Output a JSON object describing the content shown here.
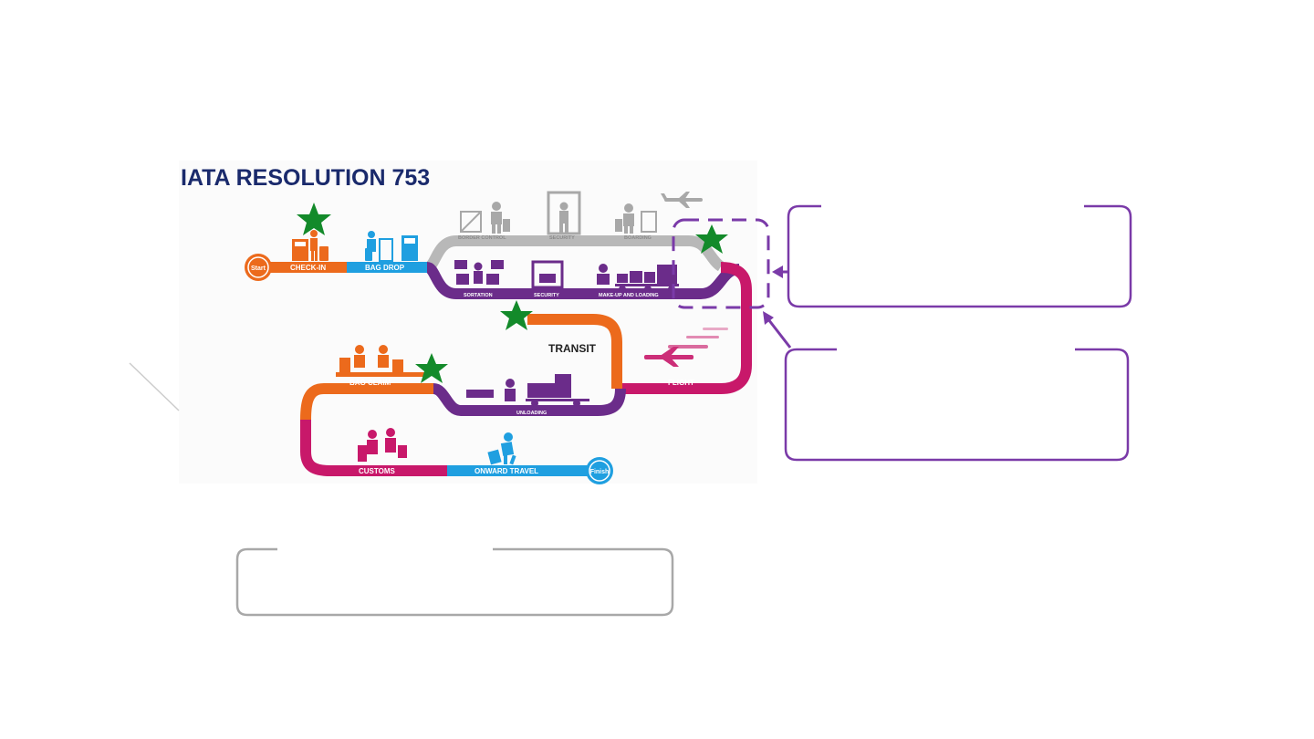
{
  "diagram": {
    "title": "IATA RESOLUTION 753",
    "transit_label": "TRANSIT",
    "start_label": "Start",
    "finish_label": "Finish",
    "stages": {
      "check_in": "CHECK-IN",
      "bag_drop": "BAG DROP",
      "border_control": "BORDER CONTROL",
      "security_top": "SECURITY",
      "boarding": "BOARDING",
      "sortation": "SORTATION",
      "security_bottom": "SECURITY",
      "make_up_loading": "MAKE-UP AND LOADING",
      "flight": "FLIGHT",
      "unloading": "UNLOADING",
      "bag_claim": "BAG CLAIM",
      "customs": "CUSTOMS",
      "onward_travel": "ONWARD TRAVEL"
    },
    "colors": {
      "title": "#1a2a6c",
      "orange": "#ec6a1c",
      "blue": "#1f9fe0",
      "gray": "#b8b8b8",
      "purple": "#6b2c8a",
      "magenta": "#c8186a",
      "star_green": "#138a2a",
      "callout_purple": "#7a3aa8",
      "callout_gray": "#a8a8a8"
    }
  }
}
